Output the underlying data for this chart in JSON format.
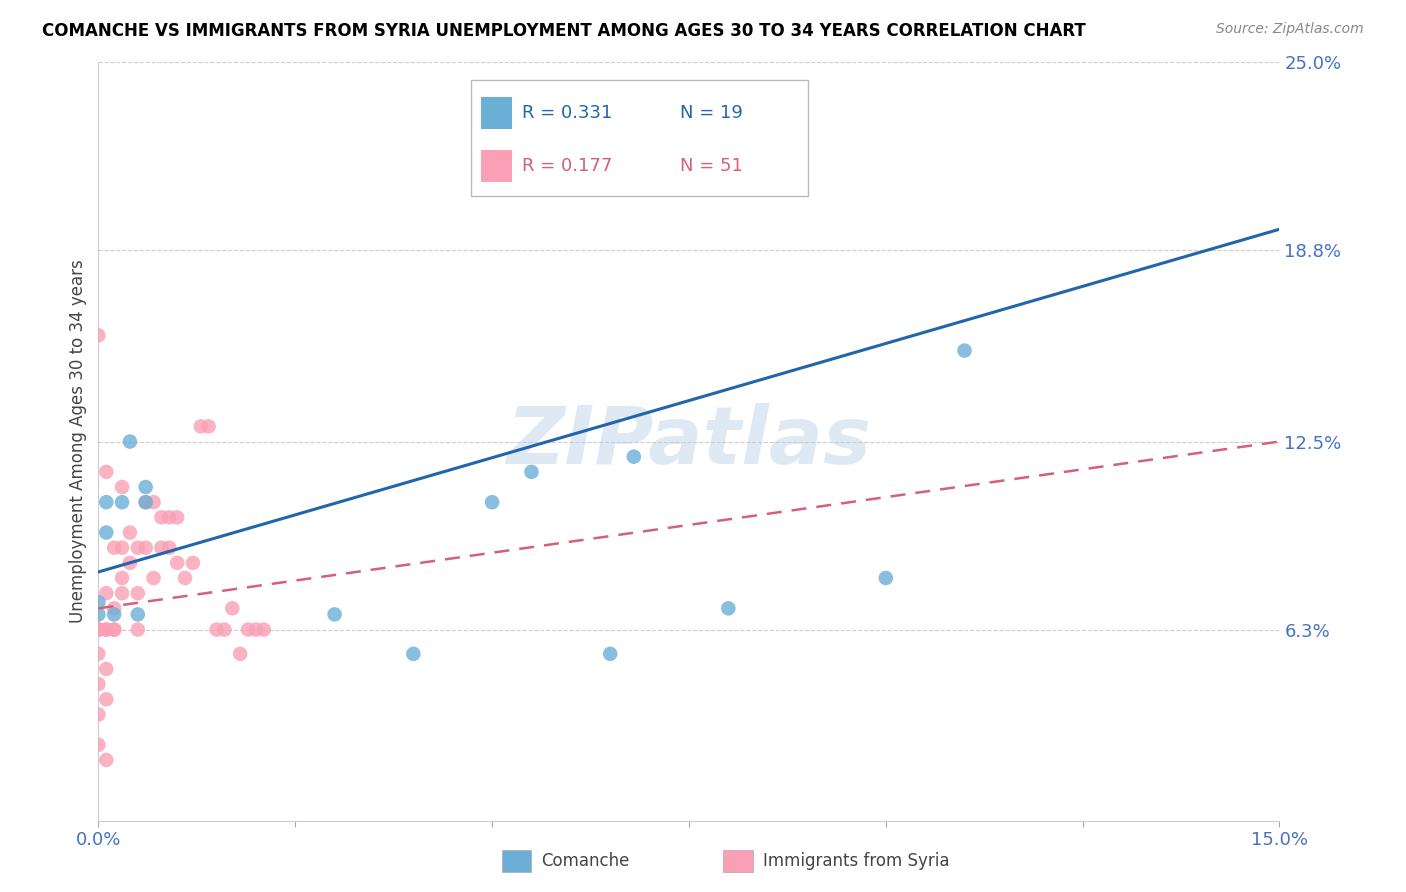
{
  "title": "COMANCHE VS IMMIGRANTS FROM SYRIA UNEMPLOYMENT AMONG AGES 30 TO 34 YEARS CORRELATION CHART",
  "source": "Source: ZipAtlas.com",
  "ylabel": "Unemployment Among Ages 30 to 34 years",
  "x_min": 0.0,
  "x_max": 0.15,
  "y_min": 0.0,
  "y_max": 0.25,
  "x_ticks": [
    0.0,
    0.025,
    0.05,
    0.075,
    0.1,
    0.125,
    0.15
  ],
  "x_tick_labels": [
    "0.0%",
    "",
    "",
    "",
    "",
    "",
    "15.0%"
  ],
  "y_tick_labels_right": [
    "6.3%",
    "12.5%",
    "18.8%",
    "25.0%"
  ],
  "y_ticks_right": [
    0.063,
    0.125,
    0.188,
    0.25
  ],
  "comanche_color": "#6baed6",
  "syria_color": "#fa9fb5",
  "comanche_line_color": "#2166ac",
  "syria_line_color": "#d4607a",
  "watermark": "ZIPatlas",
  "comanche_x": [
    0.0,
    0.0,
    0.001,
    0.001,
    0.002,
    0.003,
    0.004,
    0.005,
    0.006,
    0.006,
    0.03,
    0.04,
    0.05,
    0.055,
    0.065,
    0.068,
    0.08,
    0.1,
    0.11
  ],
  "comanche_y": [
    0.068,
    0.072,
    0.095,
    0.105,
    0.068,
    0.105,
    0.125,
    0.068,
    0.105,
    0.11,
    0.068,
    0.055,
    0.105,
    0.115,
    0.055,
    0.12,
    0.07,
    0.08,
    0.155
  ],
  "syria_x": [
    0.0,
    0.0,
    0.0,
    0.0,
    0.0,
    0.0,
    0.0,
    0.0,
    0.0,
    0.0,
    0.001,
    0.001,
    0.001,
    0.001,
    0.001,
    0.001,
    0.001,
    0.002,
    0.002,
    0.002,
    0.002,
    0.003,
    0.003,
    0.003,
    0.003,
    0.004,
    0.004,
    0.005,
    0.005,
    0.005,
    0.006,
    0.006,
    0.007,
    0.007,
    0.008,
    0.008,
    0.009,
    0.009,
    0.01,
    0.01,
    0.011,
    0.012,
    0.013,
    0.014,
    0.015,
    0.016,
    0.017,
    0.018,
    0.019,
    0.02,
    0.021
  ],
  "syria_y": [
    0.063,
    0.063,
    0.063,
    0.063,
    0.063,
    0.025,
    0.035,
    0.045,
    0.055,
    0.16,
    0.063,
    0.063,
    0.02,
    0.04,
    0.05,
    0.075,
    0.115,
    0.063,
    0.063,
    0.07,
    0.09,
    0.075,
    0.08,
    0.09,
    0.11,
    0.085,
    0.095,
    0.063,
    0.075,
    0.09,
    0.09,
    0.105,
    0.08,
    0.105,
    0.09,
    0.1,
    0.09,
    0.1,
    0.085,
    0.1,
    0.08,
    0.085,
    0.13,
    0.13,
    0.063,
    0.063,
    0.07,
    0.055,
    0.063,
    0.063,
    0.063
  ]
}
